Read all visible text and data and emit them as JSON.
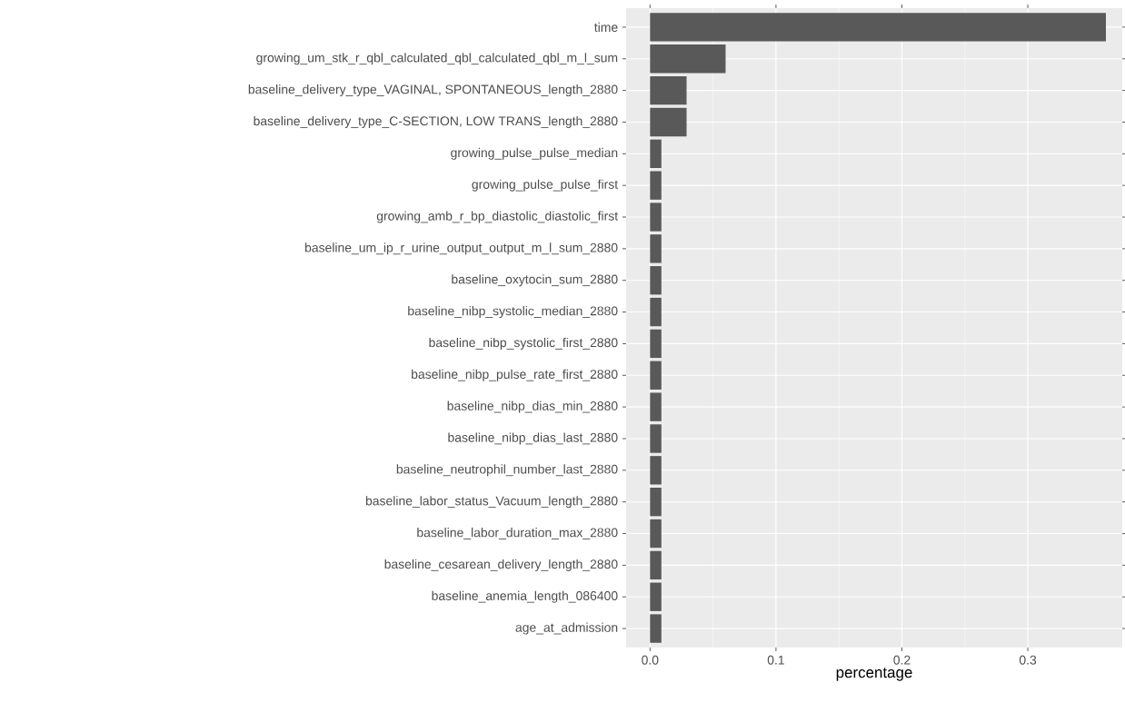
{
  "chart_data": {
    "type": "bar",
    "orientation": "horizontal",
    "xlabel": "percentage",
    "categories": [
      "time",
      "growing_um_stk_r_qbl_calculated_qbl_calculated_qbl_m_l_sum",
      "baseline_delivery_type_VAGINAL, SPONTANEOUS_length_2880",
      "baseline_delivery_type_C-SECTION, LOW TRANS_length_2880",
      "growing_pulse_pulse_median",
      "growing_pulse_pulse_first",
      "growing_amb_r_bp_diastolic_diastolic_first",
      "baseline_um_ip_r_urine_output_output_m_l_sum_2880",
      "baseline_oxytocin_sum_2880",
      "baseline_nibp_systolic_median_2880",
      "baseline_nibp_systolic_first_2880",
      "baseline_nibp_pulse_rate_first_2880",
      "baseline_nibp_dias_min_2880",
      "baseline_nibp_dias_last_2880",
      "baseline_neutrophil_number_last_2880",
      "baseline_labor_status_Vacuum_length_2880",
      "baseline_labor_duration_max_2880",
      "baseline_cesarean_delivery_length_2880",
      "baseline_anemia_length_086400",
      "age_at_admission"
    ],
    "values": [
      0.362,
      0.06,
      0.029,
      0.029,
      0.009,
      0.009,
      0.009,
      0.009,
      0.009,
      0.009,
      0.009,
      0.009,
      0.009,
      0.009,
      0.009,
      0.009,
      0.009,
      0.009,
      0.009,
      0.009
    ],
    "color": "#595959",
    "xlim": [
      -0.019,
      0.375
    ],
    "xticks": [
      {
        "value": 0,
        "label": "0.0"
      },
      0.1,
      0.2,
      0.3
    ],
    "grid": true
  }
}
